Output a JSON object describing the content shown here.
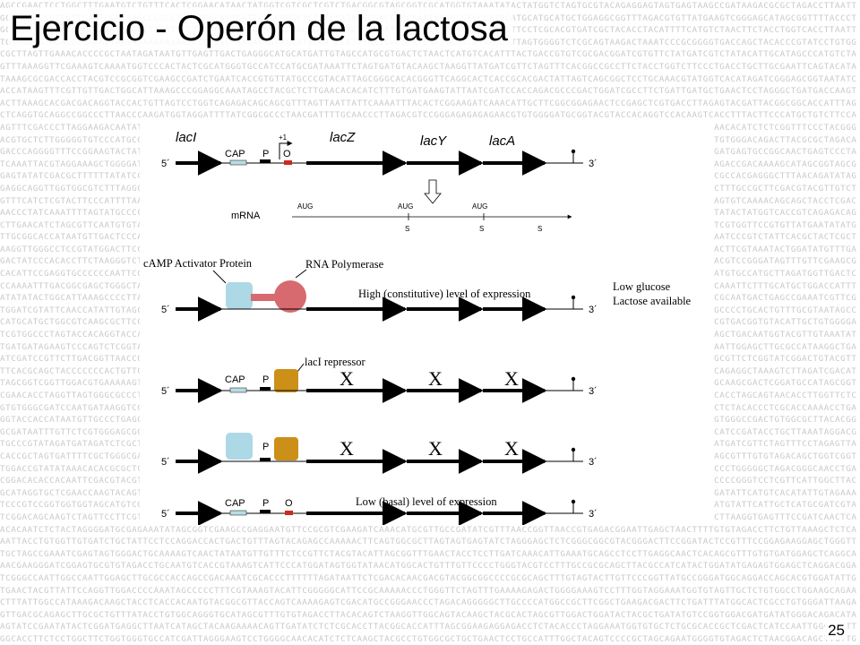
{
  "slide": {
    "title": "Ejercicio - Operón de la lactosa",
    "page_number": "25"
  },
  "genes": {
    "lacI": "lacI",
    "lacZ": "lacZ",
    "lacY": "lacY",
    "lacA": "lacA"
  },
  "labels": {
    "cap": "CAP",
    "p": "P",
    "o": "O",
    "plus1": "+1",
    "five_prime": "5´",
    "three_prime": "3´",
    "mrna": "mRNA",
    "aug": "AUG",
    "s": "S",
    "x": "X"
  },
  "callouts": {
    "camp_activator": "cAMP Activator Protein",
    "rna_polymerase": "RNA Polymerase",
    "high_expression": "High (constitutive) level of expression",
    "low_glucose": "Low glucose",
    "lactose_available": "Lactose available",
    "laci_repressor": "lacI repressor",
    "low_expression": "Low  (basal) level of expression"
  },
  "colors": {
    "cap_box": "#b7dde3",
    "activator": "#add8e6",
    "polymerase": "#d66a6e",
    "repressor": "#cc8f18",
    "operator": "#cc2a1a",
    "dna": "#000000",
    "background_text": "#c9c9c9"
  },
  "background_letters": "ACGT"
}
